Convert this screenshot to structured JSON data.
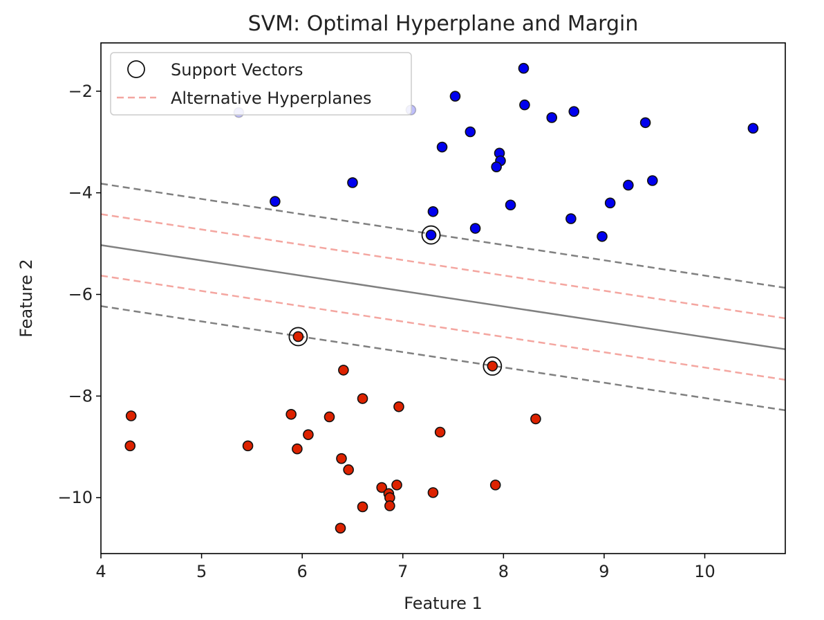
{
  "chart_data": {
    "type": "scatter",
    "title": "SVM: Optimal Hyperplane and Margin",
    "xlabel": "Feature 1",
    "ylabel": "Feature 2",
    "xlim": [
      4.0,
      10.8
    ],
    "ylim": [
      -11.1,
      -1.05
    ],
    "x_ticks": [
      4,
      5,
      6,
      7,
      8,
      9,
      10
    ],
    "y_ticks": [
      -2,
      -4,
      -6,
      -8,
      -10
    ],
    "grid": false,
    "legend": {
      "placement": "top-left",
      "entries": [
        "Support Vectors",
        "Alternative Hyperplanes"
      ]
    },
    "colors": {
      "class_blue": "#0000ee",
      "class_red": "#dd2200",
      "marker_edge": "#111111",
      "hyperplane": "#808080",
      "margin": "#808080",
      "alternative": "#f4a6a0",
      "legend_border": "#cccccc"
    },
    "points_blue": [
      [
        8.2,
        -1.55
      ],
      [
        7.52,
        -2.1
      ],
      [
        8.21,
        -2.27
      ],
      [
        8.48,
        -2.52
      ],
      [
        8.7,
        -2.4
      ],
      [
        9.41,
        -2.62
      ],
      [
        10.48,
        -2.73
      ],
      [
        7.08,
        -2.37
      ],
      [
        5.37,
        -2.42
      ],
      [
        7.67,
        -2.8
      ],
      [
        7.39,
        -3.1
      ],
      [
        7.96,
        -3.22
      ],
      [
        7.97,
        -3.37
      ],
      [
        7.93,
        -3.49
      ],
      [
        6.5,
        -3.8
      ],
      [
        5.73,
        -4.17
      ],
      [
        9.24,
        -3.85
      ],
      [
        9.48,
        -3.76
      ],
      [
        8.07,
        -4.24
      ],
      [
        9.06,
        -4.2
      ],
      [
        7.3,
        -4.37
      ],
      [
        8.67,
        -4.51
      ],
      [
        7.72,
        -4.7
      ],
      [
        8.98,
        -4.86
      ],
      [
        7.28,
        -4.83
      ]
    ],
    "points_red": [
      [
        5.96,
        -6.83
      ],
      [
        7.89,
        -7.41
      ],
      [
        6.41,
        -7.49
      ],
      [
        6.6,
        -8.05
      ],
      [
        6.96,
        -8.21
      ],
      [
        5.89,
        -8.36
      ],
      [
        6.27,
        -8.41
      ],
      [
        8.32,
        -8.45
      ],
      [
        4.3,
        -8.39
      ],
      [
        6.06,
        -8.76
      ],
      [
        7.37,
        -8.71
      ],
      [
        4.29,
        -8.98
      ],
      [
        5.46,
        -8.98
      ],
      [
        5.95,
        -9.04
      ],
      [
        6.39,
        -9.23
      ],
      [
        6.46,
        -9.45
      ],
      [
        6.79,
        -9.8
      ],
      [
        6.94,
        -9.75
      ],
      [
        7.92,
        -9.75
      ],
      [
        6.86,
        -9.92
      ],
      [
        6.87,
        -10.0
      ],
      [
        7.3,
        -9.9
      ],
      [
        6.6,
        -10.18
      ],
      [
        6.87,
        -10.16
      ],
      [
        6.38,
        -10.6
      ]
    ],
    "support_vectors": [
      [
        7.28,
        -4.83
      ],
      [
        5.96,
        -6.83
      ],
      [
        7.89,
        -7.41
      ]
    ],
    "hyperplane": {
      "x": [
        4.0,
        10.8
      ],
      "y": [
        -5.03,
        -7.08
      ]
    },
    "margins": [
      {
        "x": [
          4.0,
          10.8
        ],
        "y": [
          -3.82,
          -5.87
        ]
      },
      {
        "x": [
          4.0,
          10.8
        ],
        "y": [
          -6.23,
          -8.28
        ]
      }
    ],
    "alternatives": [
      {
        "x": [
          4.0,
          10.8
        ],
        "y": [
          -4.42,
          -6.47
        ]
      },
      {
        "x": [
          4.0,
          10.8
        ],
        "y": [
          -5.63,
          -7.68
        ]
      }
    ]
  }
}
